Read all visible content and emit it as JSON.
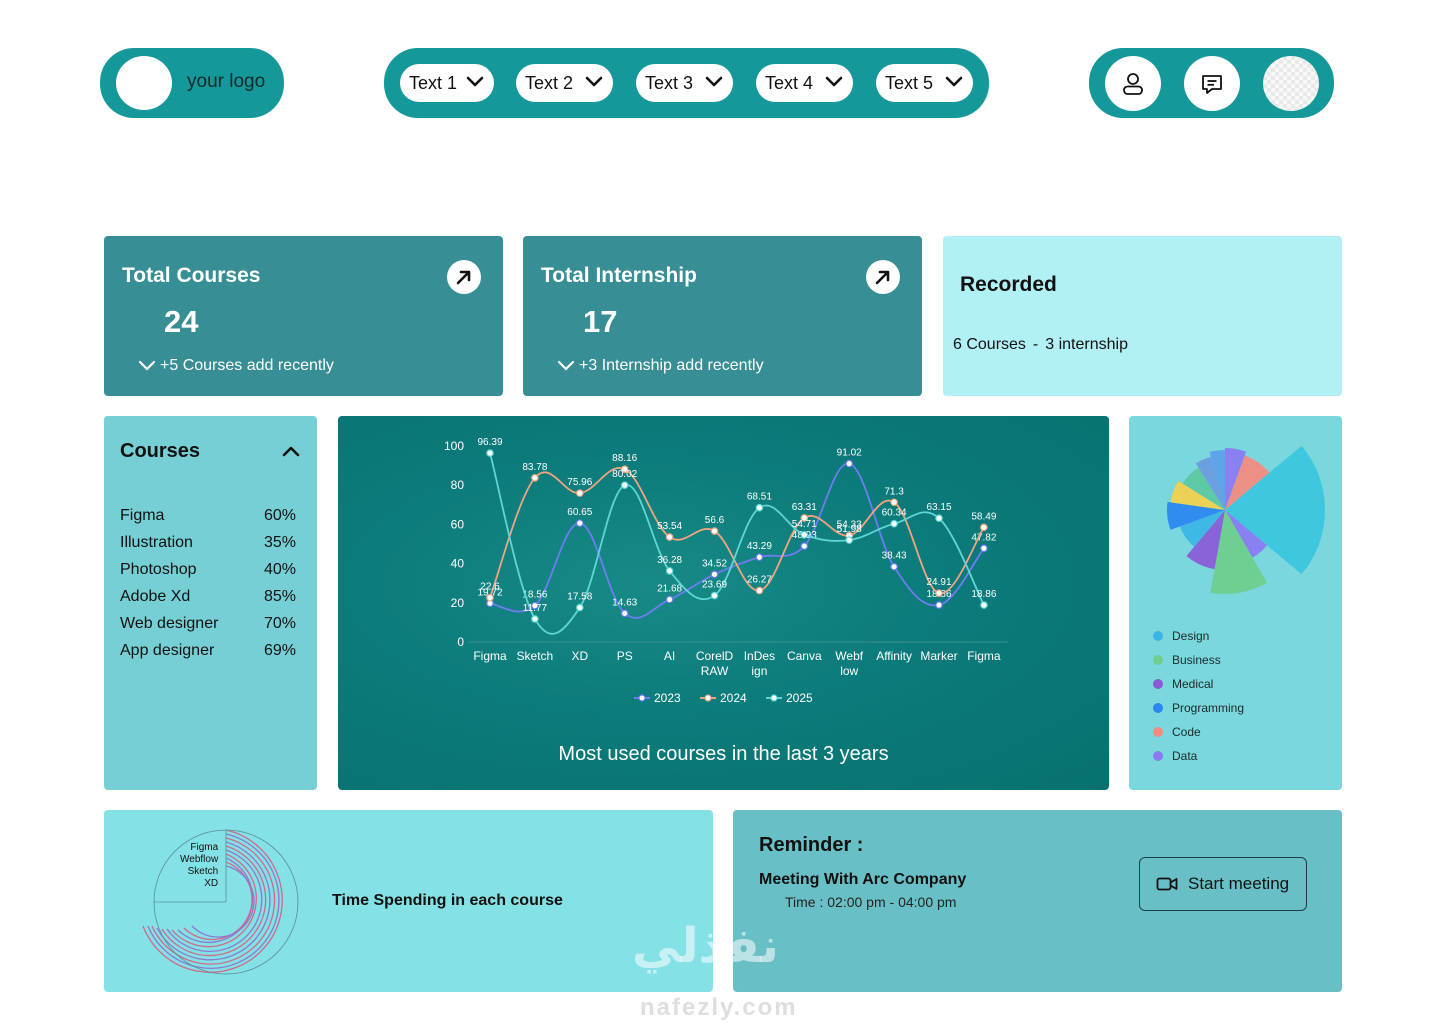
{
  "header": {
    "logo_text": "your logo",
    "nav": [
      "Text 1",
      "Text 2",
      "Text 3",
      "Text 4",
      "Text 5"
    ],
    "icons": [
      "user-icon",
      "chat-icon",
      "avatar"
    ]
  },
  "stats": [
    {
      "title": "Total Courses",
      "value": "24",
      "note": "+5 Courses add recently"
    },
    {
      "title": "Total Internship",
      "value": "17",
      "note": "+3 Internship add recently"
    }
  ],
  "recorded": {
    "title": "Recorded",
    "courses": "6 Courses",
    "separator": "-",
    "internship": "3 internship"
  },
  "courses": {
    "title": "Courses",
    "items": [
      {
        "name": "Figma",
        "pct": "60%"
      },
      {
        "name": "Illustration",
        "pct": "35%"
      },
      {
        "name": "Photoshop",
        "pct": "40%"
      },
      {
        "name": "Adobe Xd",
        "pct": "85%"
      },
      {
        "name": "Web designer",
        "pct": "70%"
      },
      {
        "name": "App designer",
        "pct": "69%"
      }
    ]
  },
  "chart_caption": "Most used courses in the last 3 years",
  "chart_data": {
    "type": "line",
    "categories": [
      "Figma",
      "Sketch",
      "XD",
      "PS",
      "AI",
      "CorelD RAW",
      "InDes ign",
      "Canva",
      "Webf low",
      "Affinity",
      "Marker",
      "Figma"
    ],
    "ylim": [
      0,
      100
    ],
    "yticks": [
      0,
      20,
      40,
      60,
      80,
      100
    ],
    "series": [
      {
        "name": "2023",
        "color": "#6f7cf2",
        "values": [
          19.72,
          18.56,
          60.65,
          14.63,
          21.68,
          34.52,
          43.29,
          48.93,
          91.02,
          38.43,
          18.86,
          47.82
        ]
      },
      {
        "name": "2024",
        "color": "#f0a580",
        "values": [
          22.6,
          83.78,
          75.96,
          88.16,
          53.54,
          56.6,
          26.27,
          63.31,
          54.33,
          71.3,
          24.91,
          58.49
        ]
      },
      {
        "name": "2025",
        "color": "#5ed6d6",
        "values": [
          96.39,
          11.77,
          17.58,
          80.02,
          36.28,
          23.69,
          68.51,
          54.71,
          51.98,
          60.34,
          63.15,
          18.86
        ]
      }
    ]
  },
  "pie": {
    "legend": [
      {
        "label": "Design",
        "color": "#3bb5e6"
      },
      {
        "label": "Business",
        "color": "#6ece8c"
      },
      {
        "label": "Medical",
        "color": "#8a5ad8"
      },
      {
        "label": "Programming",
        "color": "#2a86f0"
      },
      {
        "label": "Code",
        "color": "#f58a7e"
      },
      {
        "label": "Data",
        "color": "#8a7af2"
      }
    ]
  },
  "time_spending": {
    "title": "Time Spending in each course",
    "labels": [
      "Figma",
      "Webflow",
      "Sketch",
      "XD"
    ]
  },
  "reminder": {
    "title": "Reminder :",
    "meeting": "Meeting With Arc Company",
    "time": "Time : 02:00 pm - 04:00 pm",
    "button": "Start meeting"
  },
  "watermark": {
    "arabic": "نفذلي",
    "latin": "nafezly.com"
  }
}
